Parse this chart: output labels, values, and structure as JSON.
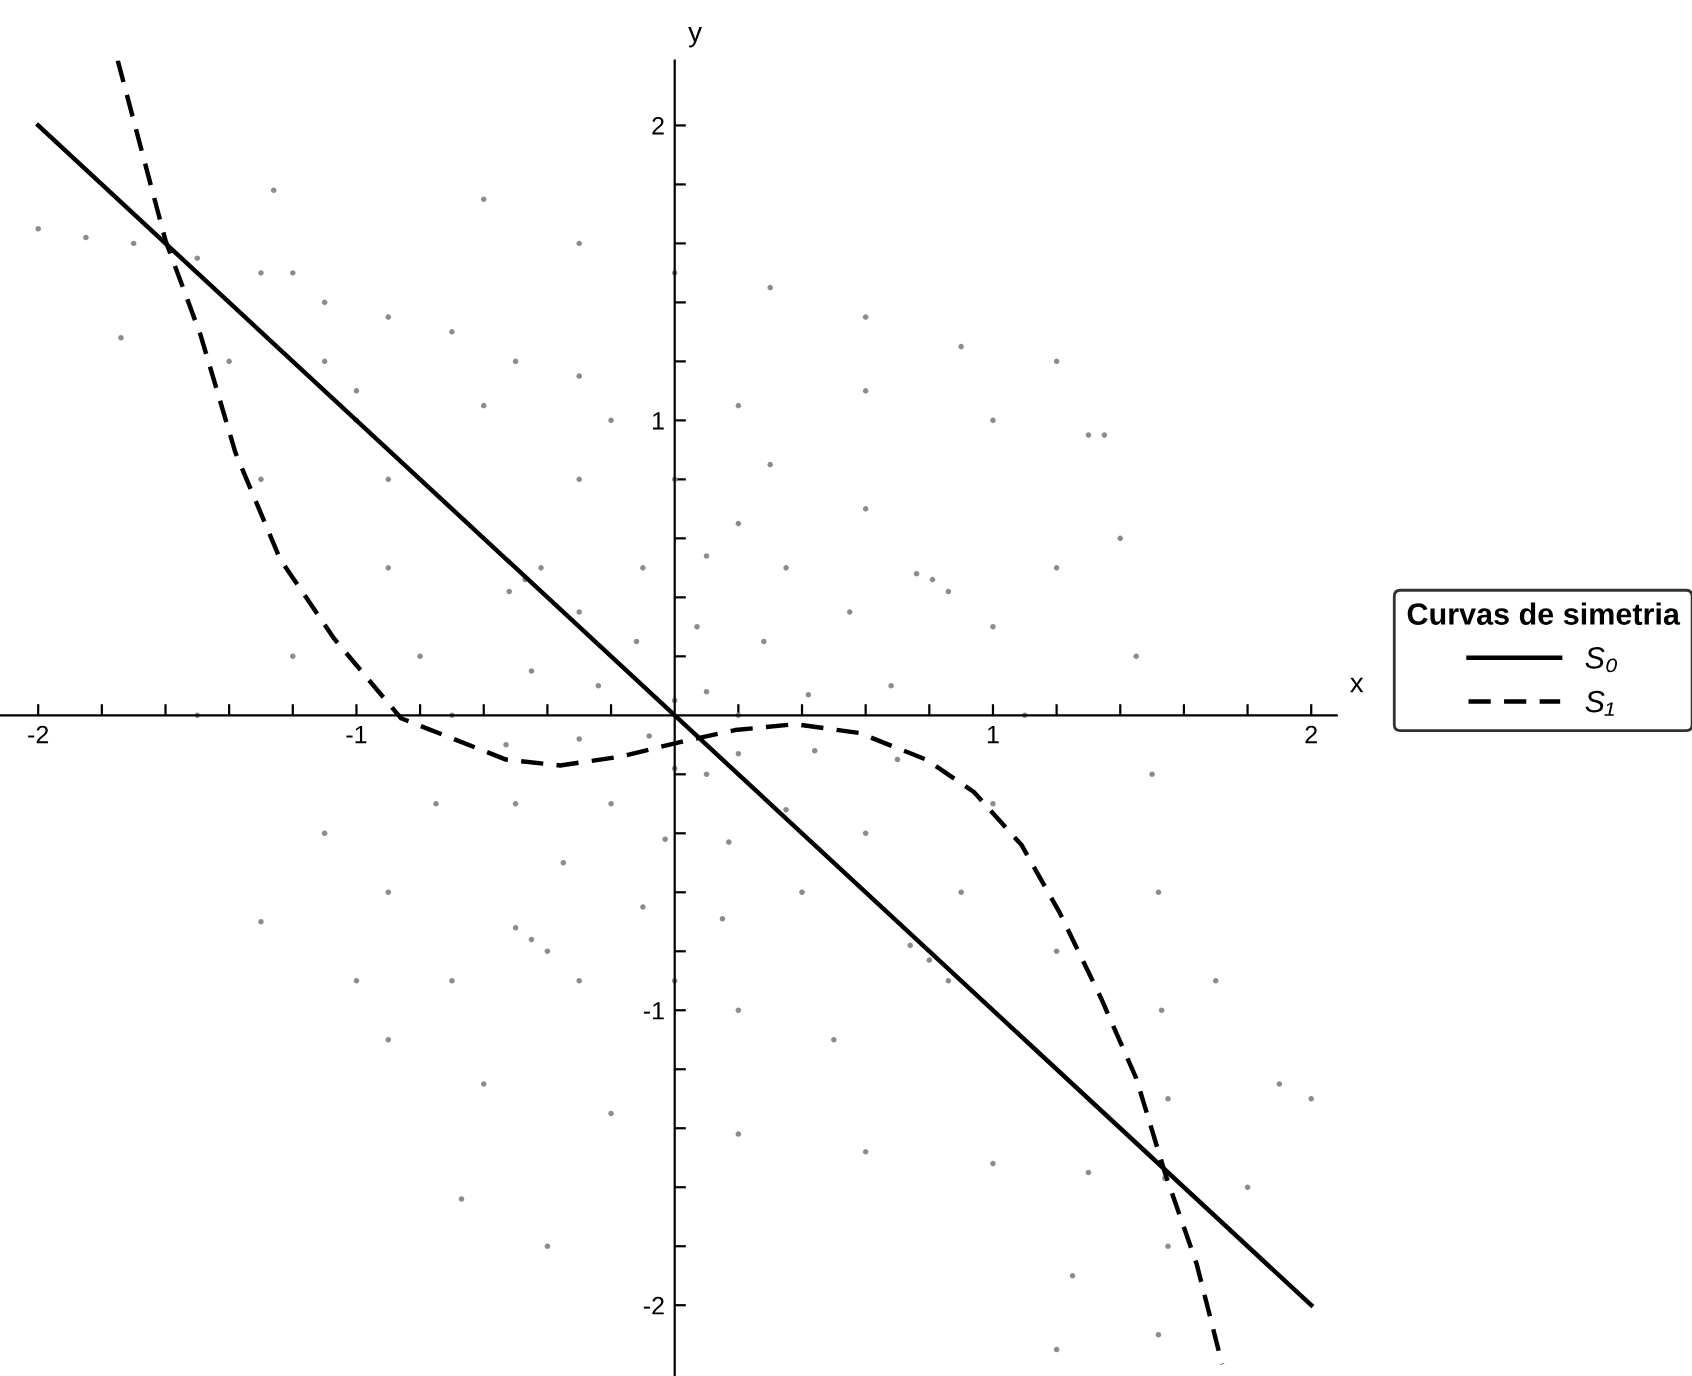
{
  "chart_data": {
    "type": "scatter",
    "xlabel": "x",
    "ylabel": "y",
    "legend_title": "Curvas de simetria",
    "legend": "right",
    "grid": false,
    "xlim": [
      -2.12,
      2.08
    ],
    "ylim": [
      -2.24,
      2.22
    ],
    "xticks": [
      -2,
      {
        "value": -1.8,
        "label": null
      },
      {
        "value": -1.6,
        "label": null
      },
      {
        "value": -1.4,
        "label": null
      },
      {
        "value": -1.2,
        "label": null
      },
      -1,
      {
        "value": -0.8,
        "label": null
      },
      {
        "value": -0.6,
        "label": null
      },
      {
        "value": -0.4,
        "label": null
      },
      {
        "value": -0.2,
        "label": null
      },
      {
        "value": 0.2,
        "label": null
      },
      {
        "value": 0.4,
        "label": null
      },
      {
        "value": 0.6,
        "label": null
      },
      {
        "value": 0.8,
        "label": null
      },
      1,
      {
        "value": 1.2,
        "label": null
      },
      {
        "value": 1.4,
        "label": null
      },
      {
        "value": 1.6,
        "label": null
      },
      {
        "value": 1.8,
        "label": null
      },
      2
    ],
    "yticks": [
      -2,
      {
        "value": -1.8,
        "label": null
      },
      {
        "value": -1.6,
        "label": null
      },
      {
        "value": -1.4,
        "label": null
      },
      {
        "value": -1.2,
        "label": null
      },
      -1,
      {
        "value": -0.8,
        "label": null
      },
      {
        "value": -0.6,
        "label": null
      },
      {
        "value": -0.4,
        "label": null
      },
      {
        "value": -0.2,
        "label": null
      },
      {
        "value": 0.2,
        "label": null
      },
      {
        "value": 0.4,
        "label": null
      },
      {
        "value": 0.6,
        "label": null
      },
      {
        "value": 0.8,
        "label": null
      },
      1,
      {
        "value": 1.2,
        "label": null
      },
      {
        "value": 1.4,
        "label": null
      },
      {
        "value": 1.6,
        "label": null
      },
      {
        "value": 1.8,
        "label": null
      },
      2
    ],
    "series": [
      {
        "color": "#8c8c8c",
        "marker": "circle",
        "x": [
          -0.53,
          -0.45,
          -0.3,
          -0.1,
          0.1,
          0.35,
          0.55,
          0.68,
          0.7,
          0.6,
          0.4,
          0.15,
          -0.1,
          -0.35,
          -0.5,
          -0.3,
          -0.24,
          -0.12,
          0.07,
          0.28,
          0.42,
          0.44,
          0.35,
          0.17,
          -0.03,
          -0.2,
          -0.08,
          0.0,
          0.1,
          0.2,
          0.2,
          0.1,
          0.0,
          -2.0,
          -1.85,
          -1.7,
          -1.5,
          -1.3,
          -1.1,
          -0.9,
          -0.7,
          -0.5,
          -0.3,
          -1.26,
          -1.2,
          -1.1,
          -1.0,
          -1.74,
          -1.4,
          -1.0,
          -0.6,
          -0.2,
          0.2,
          0.6,
          1.0,
          1.3,
          -0.6,
          -0.3,
          0.0,
          0.3,
          0.6,
          0.9,
          1.2,
          1.35,
          1.4,
          1.45,
          1.5,
          1.52,
          1.53,
          1.55,
          1.7,
          1.9,
          2.0,
          1.8,
          -0.2,
          0.2,
          0.6,
          1.0,
          1.3,
          1.54,
          -0.6,
          -0.9,
          1.55,
          1.52,
          1.25,
          1.2,
          -0.67,
          -0.4,
          -0.9,
          -1.1,
          -1.3,
          -1.0,
          -0.7,
          -0.9,
          -0.8,
          -0.7,
          -0.75,
          -1.2,
          -1.5,
          -1.3,
          -0.9,
          1.0,
          1.1,
          1.0,
          1.2,
          0.9,
          1.2,
          0.5,
          0.2,
          0.0,
          -0.3,
          0.0,
          0.3,
          -0.3,
          0.6,
          0.2,
          -0.47,
          -0.52,
          -0.42,
          0.81,
          0.76,
          0.86,
          -0.45,
          -0.5,
          -0.4,
          0.8,
          0.74,
          0.86
        ],
        "values": [
          -0.1,
          0.15,
          0.35,
          0.5,
          0.54,
          0.5,
          0.35,
          0.1,
          -0.15,
          -0.4,
          -0.6,
          -0.69,
          -0.65,
          -0.5,
          -0.3,
          -0.08,
          0.1,
          0.25,
          0.3,
          0.25,
          0.07,
          -0.12,
          -0.32,
          -0.43,
          -0.42,
          -0.3,
          -0.07,
          0.05,
          0.08,
          0.0,
          -0.13,
          -0.2,
          -0.18,
          1.65,
          1.62,
          1.6,
          1.55,
          1.5,
          1.4,
          1.35,
          1.3,
          1.2,
          1.15,
          1.78,
          1.5,
          1.2,
          1.0,
          1.28,
          1.2,
          1.1,
          1.05,
          1.0,
          1.05,
          1.1,
          1.0,
          0.95,
          1.75,
          1.6,
          1.5,
          1.45,
          1.35,
          1.25,
          1.2,
          0.95,
          0.6,
          0.2,
          -0.2,
          -0.6,
          -1.0,
          -1.3,
          -0.9,
          -1.25,
          -1.3,
          -1.6,
          -1.35,
          -1.42,
          -1.48,
          -1.52,
          -1.55,
          -1.57,
          -1.25,
          -1.1,
          -1.8,
          -2.1,
          -1.9,
          -2.15,
          -1.64,
          -1.8,
          -0.6,
          -0.4,
          -0.7,
          -0.9,
          -0.9,
          0.5,
          0.2,
          0.0,
          -0.3,
          0.2,
          0.0,
          0.8,
          0.8,
          0.3,
          0.0,
          -0.3,
          0.5,
          -0.6,
          -0.8,
          -1.1,
          -1.0,
          -0.9,
          -0.9,
          0.8,
          0.85,
          0.8,
          0.7,
          0.65,
          0.46,
          0.42,
          0.5,
          0.46,
          0.48,
          0.42,
          -0.76,
          -0.72,
          -0.8,
          -0.83,
          -0.78,
          -0.9
        ]
      },
      {
        "type": "line",
        "name": "S₀",
        "color": "#000000",
        "line_style": "solid",
        "marker": "none",
        "x": [
          -2,
          2
        ],
        "values": [
          2,
          -2
        ]
      },
      {
        "type": "line",
        "name": "S₁",
        "color": "#000000",
        "line_style": "dashed",
        "marker": "none",
        "x": [
          -1.75,
          -1.6,
          -1.49,
          -1.38,
          -1.24,
          -1.07,
          -0.86,
          -0.53,
          -0.36,
          -0.17,
          0.02,
          0.19,
          0.38,
          0.58,
          0.79,
          0.94,
          1.09,
          1.21,
          1.34,
          1.45,
          1.54,
          1.64,
          1.72
        ],
        "values": [
          2.22,
          1.61,
          1.29,
          0.89,
          0.53,
          0.26,
          -0.01,
          -0.15,
          -0.17,
          -0.14,
          -0.09,
          -0.05,
          -0.03,
          -0.06,
          -0.15,
          -0.26,
          -0.44,
          -0.67,
          -0.96,
          -1.23,
          -1.55,
          -1.86,
          -2.2
        ]
      }
    ]
  }
}
